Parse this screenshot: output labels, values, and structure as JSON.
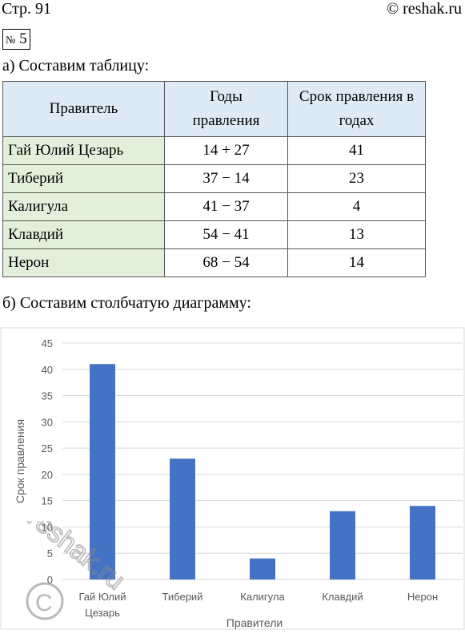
{
  "header": {
    "page": "Стр. 91",
    "site": "© reshak.ru"
  },
  "task": {
    "sign": "№",
    "number": "5"
  },
  "part_a": {
    "text": "а) Составим таблицу:"
  },
  "table": {
    "headers": [
      "Правитель",
      "Годы правления",
      "Срок правления в годах"
    ],
    "rows": [
      [
        "Гай Юлий Цезарь",
        "14 + 27",
        "41"
      ],
      [
        "Тиберий",
        "37 − 14",
        "23"
      ],
      [
        "Калигула",
        "41 − 37",
        "4"
      ],
      [
        "Клавдий",
        "54 − 41",
        "13"
      ],
      [
        "Нерон",
        "68 − 54",
        "14"
      ]
    ]
  },
  "part_b": {
    "text": "б) Составим столбчатую диаграмму:"
  },
  "chart_data": {
    "type": "bar",
    "categories": [
      "Гай Юлий Цезарь",
      "Тиберий",
      "Калигула",
      "Клавдий",
      "Нерон"
    ],
    "values": [
      41,
      23,
      4,
      13,
      14
    ],
    "title": "",
    "xlabel": "Правители",
    "ylabel": "Срок правления",
    "ylim": [
      0,
      45
    ],
    "yticks": [
      0,
      5,
      10,
      15,
      20,
      25,
      30,
      35,
      40,
      45
    ],
    "grid": true,
    "bar_color": "#4472c4"
  },
  "watermark": {
    "text": "reshak.ru"
  }
}
